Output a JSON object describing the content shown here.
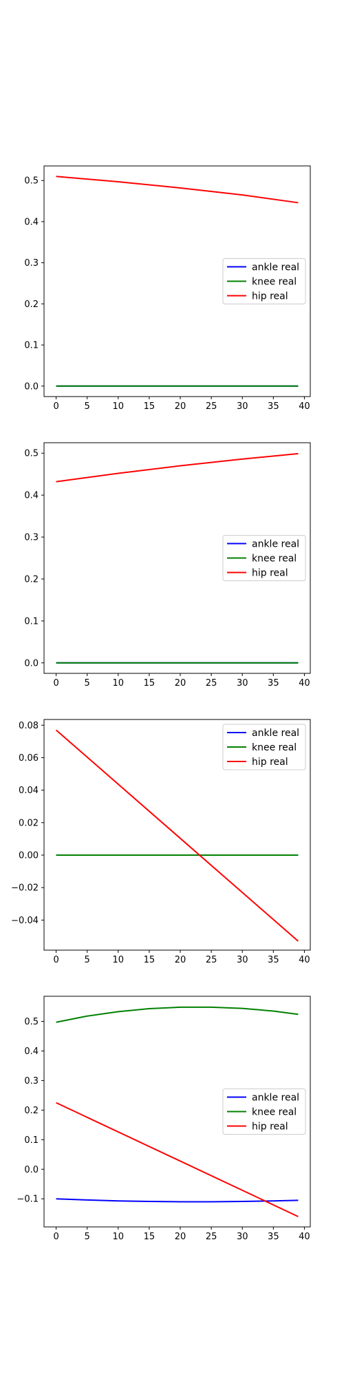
{
  "colors": {
    "ankle": "#0000ff",
    "knee": "#008000",
    "hip": "#ff0000"
  },
  "chart_data": [
    {
      "type": "line",
      "title": "",
      "xlabel": "",
      "ylabel": "",
      "xlim": [
        -1.95,
        40.95
      ],
      "ylim": [
        -0.0255,
        0.5355
      ],
      "legend_position": "center-right",
      "x_ticks": [
        0,
        5,
        10,
        15,
        20,
        25,
        30,
        35,
        40
      ],
      "x_tick_labels": [
        "0",
        "5",
        "10",
        "15",
        "20",
        "25",
        "30",
        "35",
        "40"
      ],
      "y_ticks": [
        0.0,
        0.1,
        0.2,
        0.3,
        0.4,
        0.5
      ],
      "y_tick_labels": [
        "0.0",
        "0.1",
        "0.2",
        "0.3",
        "0.4",
        "0.5"
      ],
      "series": [
        {
          "name": "ankle real",
          "color": "#0000ff",
          "x": [
            0,
            39
          ],
          "y": [
            0.0,
            0.0
          ]
        },
        {
          "name": "knee real",
          "color": "#008000",
          "x": [
            0,
            39
          ],
          "y": [
            0.0,
            0.0
          ]
        },
        {
          "name": "hip real",
          "color": "#ff0000",
          "x": [
            0,
            10,
            20,
            30,
            39
          ],
          "y": [
            0.51,
            0.497,
            0.482,
            0.465,
            0.446
          ]
        }
      ]
    },
    {
      "type": "line",
      "title": "",
      "xlabel": "",
      "ylabel": "",
      "xlim": [
        -1.95,
        40.95
      ],
      "ylim": [
        -0.025,
        0.525
      ],
      "legend_position": "center-right",
      "x_ticks": [
        0,
        5,
        10,
        15,
        20,
        25,
        30,
        35,
        40
      ],
      "x_tick_labels": [
        "0",
        "5",
        "10",
        "15",
        "20",
        "25",
        "30",
        "35",
        "40"
      ],
      "y_ticks": [
        0.0,
        0.1,
        0.2,
        0.3,
        0.4,
        0.5
      ],
      "y_tick_labels": [
        "0.0",
        "0.1",
        "0.2",
        "0.3",
        "0.4",
        "0.5"
      ],
      "series": [
        {
          "name": "ankle real",
          "color": "#0000ff",
          "x": [
            0,
            39
          ],
          "y": [
            0.0,
            0.0
          ]
        },
        {
          "name": "knee real",
          "color": "#008000",
          "x": [
            0,
            39
          ],
          "y": [
            0.0,
            0.0
          ]
        },
        {
          "name": "hip real",
          "color": "#ff0000",
          "x": [
            0,
            10,
            20,
            30,
            39
          ],
          "y": [
            0.432,
            0.452,
            0.47,
            0.486,
            0.499
          ]
        }
      ]
    },
    {
      "type": "line",
      "title": "",
      "xlabel": "",
      "ylabel": "",
      "xlim": [
        -1.95,
        40.95
      ],
      "ylim": [
        -0.0585,
        0.0835
      ],
      "legend_position": "upper-right",
      "x_ticks": [
        0,
        5,
        10,
        15,
        20,
        25,
        30,
        35,
        40
      ],
      "x_tick_labels": [
        "0",
        "5",
        "10",
        "15",
        "20",
        "25",
        "30",
        "35",
        "40"
      ],
      "y_ticks": [
        -0.04,
        -0.02,
        0.0,
        0.02,
        0.04,
        0.06,
        0.08
      ],
      "y_tick_labels": [
        "−0.04",
        "−0.02",
        "0.00",
        "0.02",
        "0.04",
        "0.06",
        "0.08"
      ],
      "series": [
        {
          "name": "ankle real",
          "color": "#0000ff",
          "x": [
            0,
            39
          ],
          "y": [
            0.0,
            0.0
          ]
        },
        {
          "name": "knee real",
          "color": "#008000",
          "x": [
            0,
            39
          ],
          "y": [
            0.0,
            0.0
          ]
        },
        {
          "name": "hip real",
          "color": "#ff0000",
          "x": [
            0,
            39
          ],
          "y": [
            0.077,
            -0.053
          ]
        }
      ]
    },
    {
      "type": "line",
      "title": "",
      "xlabel": "",
      "ylabel": "",
      "xlim": [
        -1.95,
        40.95
      ],
      "ylim": [
        -0.195,
        0.585
      ],
      "legend_position": "center-right",
      "x_ticks": [
        0,
        5,
        10,
        15,
        20,
        25,
        30,
        35,
        40
      ],
      "x_tick_labels": [
        "0",
        "5",
        "10",
        "15",
        "20",
        "25",
        "30",
        "35",
        "40"
      ],
      "y_ticks": [
        -0.1,
        0.0,
        0.1,
        0.2,
        0.3,
        0.4,
        0.5
      ],
      "y_tick_labels": [
        "−0.1",
        "0.0",
        "0.1",
        "0.2",
        "0.3",
        "0.4",
        "0.5"
      ],
      "series": [
        {
          "name": "ankle real",
          "color": "#0000ff",
          "x": [
            0,
            5,
            10,
            15,
            20,
            25,
            30,
            35,
            39
          ],
          "y": [
            -0.1,
            -0.104,
            -0.107,
            -0.109,
            -0.11,
            -0.11,
            -0.109,
            -0.107,
            -0.105
          ]
        },
        {
          "name": "knee real",
          "color": "#008000",
          "x": [
            0,
            5,
            10,
            15,
            20,
            25,
            30,
            35,
            39
          ],
          "y": [
            0.497,
            0.518,
            0.533,
            0.543,
            0.548,
            0.548,
            0.544,
            0.535,
            0.524
          ]
        },
        {
          "name": "hip real",
          "color": "#ff0000",
          "x": [
            0,
            39
          ],
          "y": [
            0.225,
            -0.16
          ]
        }
      ]
    }
  ]
}
